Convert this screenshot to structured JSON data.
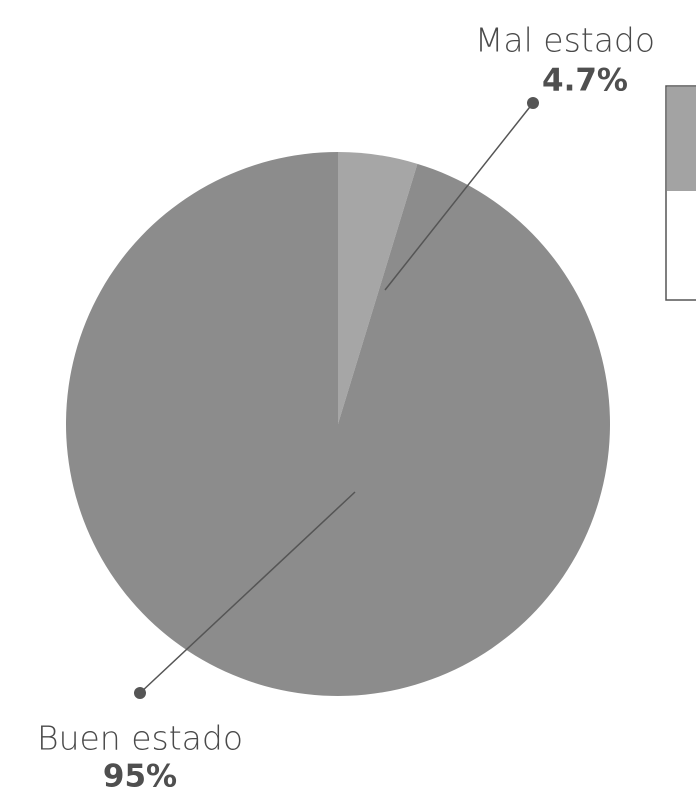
{
  "chart_data": {
    "type": "pie",
    "categories": [
      "Mal estado",
      "Buen estado"
    ],
    "values": [
      4.7,
      95
    ],
    "value_labels": [
      "4.7%",
      "95%"
    ],
    "colors": [
      "#a6a6a6",
      "#8c8c8c"
    ]
  }
}
